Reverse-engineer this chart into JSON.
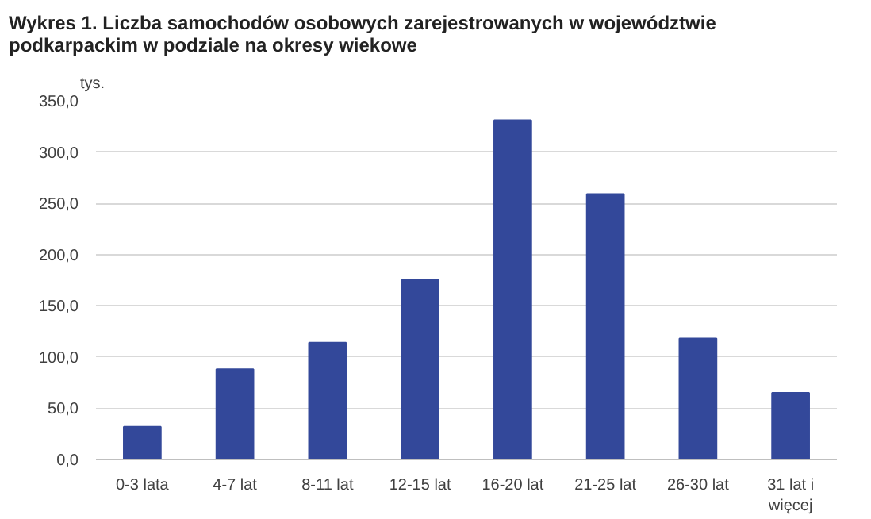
{
  "chart_data": {
    "type": "bar",
    "title": "Wykres 1. Liczba samochodów osobowych zarejestrowanych w województwie podkarpackim w podziale na okresy wiekowe",
    "ylabel": "tys.",
    "categories": [
      "0-3 lata",
      "4-7 lat",
      "8-11 lat",
      "12-15 lat",
      "16-20 lat",
      "21-25 lat",
      "26-30 lat",
      "31 lat i więcej"
    ],
    "values": [
      32,
      88,
      114,
      175,
      331,
      259,
      118,
      65
    ],
    "color": "#33489a",
    "ylim": [
      0,
      350
    ],
    "yticks": [
      {
        "value": 0,
        "label": "0,0"
      },
      {
        "value": 50,
        "label": "50,0"
      },
      {
        "value": 100,
        "label": "100,0"
      },
      {
        "value": 150,
        "label": "150,0"
      },
      {
        "value": 200,
        "label": "200,0"
      },
      {
        "value": 250,
        "label": "250,0"
      },
      {
        "value": 300,
        "label": "300,0"
      },
      {
        "value": 350,
        "label": "350,0"
      }
    ],
    "grid": "y"
  }
}
